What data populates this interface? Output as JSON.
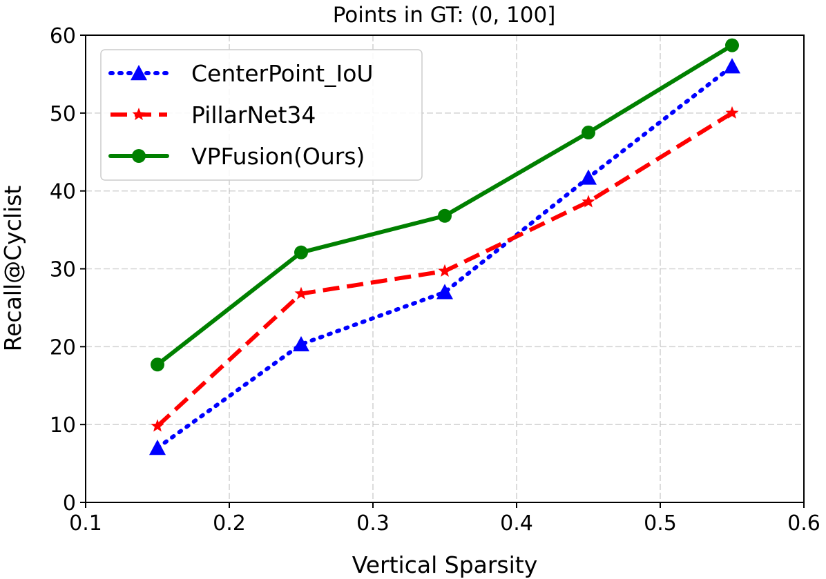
{
  "chart_data": {
    "type": "line",
    "title": "Points in GT: (0, 100]",
    "xlabel": "Vertical Sparsity",
    "ylabel": "Recall@Cyclist",
    "xlim": [
      0.1,
      0.6
    ],
    "ylim": [
      0,
      60
    ],
    "xticks": [
      0.1,
      0.2,
      0.3,
      0.4,
      0.5,
      0.6
    ],
    "xtick_labels": [
      "0.1",
      "0.2",
      "0.3",
      "0.4",
      "0.5",
      "0.6"
    ],
    "yticks": [
      0,
      10,
      20,
      30,
      40,
      50,
      60
    ],
    "ytick_labels": [
      "0",
      "10",
      "20",
      "30",
      "40",
      "50",
      "60"
    ],
    "grid": true,
    "legend_position": "top-left",
    "x": [
      0.15,
      0.25,
      0.35,
      0.45,
      0.55
    ],
    "series": [
      {
        "name": "CenterPoint_IoU",
        "values": [
          7.0,
          20.3,
          27.0,
          41.7,
          56.0
        ],
        "color": "#0000ff",
        "line_style": "dotted",
        "marker": "triangle"
      },
      {
        "name": "PillarNet34",
        "values": [
          9.8,
          26.8,
          29.7,
          38.6,
          50.0
        ],
        "color": "#ff0000",
        "line_style": "dashed",
        "marker": "star"
      },
      {
        "name": "VPFusion(Ours)",
        "values": [
          17.7,
          32.1,
          36.8,
          47.5,
          58.7
        ],
        "color": "#008000",
        "line_style": "solid",
        "marker": "circle"
      }
    ]
  }
}
